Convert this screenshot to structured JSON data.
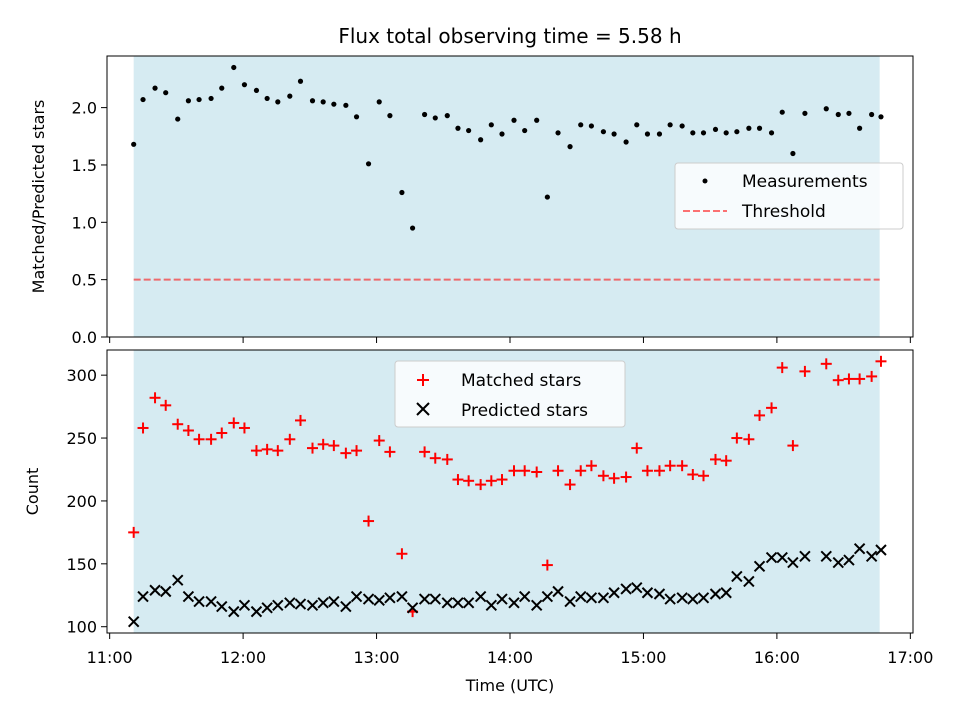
{
  "title": "Flux total observing time = 5.58 h",
  "colors": {
    "shade": "#add8e6",
    "threshold": "#ff0000",
    "matched": "#ff0000",
    "predicted": "#000000",
    "measurements": "#000000"
  },
  "chart_data": [
    {
      "type": "scatter",
      "panel": "top",
      "ylabel": "Matched/Predicted stars",
      "ylim": [
        0,
        2.45
      ],
      "yticks": [
        "0.0",
        "0.5",
        "1.0",
        "1.5",
        "2.0"
      ],
      "ytick_values": [
        0,
        0.5,
        1.0,
        1.5,
        2.0
      ],
      "shaded_interval": [
        11.18,
        16.77
      ],
      "legend_position": "center-right",
      "threshold": {
        "name": "Threshold",
        "y": 0.5,
        "style": "dashed"
      },
      "series": [
        {
          "name": "Measurements",
          "marker": "dot",
          "x": [
            11.18,
            11.25,
            11.34,
            11.42,
            11.51,
            11.59,
            11.67,
            11.76,
            11.84,
            11.93,
            12.01,
            12.1,
            12.18,
            12.26,
            12.35,
            12.43,
            12.52,
            12.6,
            12.68,
            12.77,
            12.85,
            12.94,
            13.02,
            13.1,
            13.19,
            13.27,
            13.36,
            13.44,
            13.53,
            13.61,
            13.69,
            13.78,
            13.86,
            13.94,
            14.03,
            14.11,
            14.2,
            14.28,
            14.36,
            14.45,
            14.53,
            14.61,
            14.7,
            14.78,
            14.87,
            14.95,
            15.03,
            15.12,
            15.2,
            15.29,
            15.37,
            15.45,
            15.54,
            15.62,
            15.7,
            15.79,
            15.87,
            15.96,
            16.04,
            16.12,
            16.21,
            16.37,
            16.46,
            16.54,
            16.62,
            16.71,
            16.78
          ],
          "y": [
            1.68,
            2.07,
            2.17,
            2.13,
            1.9,
            2.06,
            2.07,
            2.08,
            2.17,
            2.35,
            2.2,
            2.15,
            2.08,
            2.05,
            2.1,
            2.23,
            2.06,
            2.05,
            2.03,
            2.02,
            1.92,
            1.51,
            2.05,
            1.93,
            1.26,
            0.95,
            1.94,
            1.91,
            1.93,
            1.82,
            1.8,
            1.72,
            1.85,
            1.77,
            1.89,
            1.8,
            1.89,
            1.22,
            1.78,
            1.66,
            1.85,
            1.84,
            1.79,
            1.77,
            1.7,
            1.85,
            1.77,
            1.77,
            1.85,
            1.84,
            1.78,
            1.78,
            1.81,
            1.78,
            1.79,
            1.82,
            1.82,
            1.78,
            1.96,
            1.6,
            1.95,
            1.99,
            1.94,
            1.95,
            1.82,
            1.94,
            1.92
          ]
        }
      ]
    },
    {
      "type": "scatter",
      "panel": "bottom",
      "xlabel": "Time (UTC)",
      "ylabel": "Count",
      "xlim": [
        10.98,
        17.02
      ],
      "ylim": [
        95,
        320
      ],
      "xticks": [
        "11:00",
        "12:00",
        "13:00",
        "14:00",
        "15:00",
        "16:00",
        "17:00"
      ],
      "xtick_values": [
        11,
        12,
        13,
        14,
        15,
        16,
        17
      ],
      "yticks": [
        "100",
        "150",
        "200",
        "250",
        "300"
      ],
      "ytick_values": [
        100,
        150,
        200,
        250,
        300
      ],
      "shaded_interval": [
        11.18,
        16.77
      ],
      "legend_position": "upper-center",
      "series": [
        {
          "name": "Matched stars",
          "marker": "plus",
          "x": [
            11.18,
            11.25,
            11.34,
            11.42,
            11.51,
            11.59,
            11.67,
            11.76,
            11.84,
            11.93,
            12.01,
            12.1,
            12.18,
            12.26,
            12.35,
            12.43,
            12.52,
            12.6,
            12.68,
            12.77,
            12.85,
            12.94,
            13.02,
            13.1,
            13.19,
            13.27,
            13.36,
            13.44,
            13.53,
            13.61,
            13.69,
            13.78,
            13.86,
            13.94,
            14.03,
            14.11,
            14.2,
            14.28,
            14.36,
            14.45,
            14.53,
            14.61,
            14.7,
            14.78,
            14.87,
            14.95,
            15.03,
            15.12,
            15.2,
            15.29,
            15.37,
            15.45,
            15.54,
            15.62,
            15.7,
            15.79,
            15.87,
            15.96,
            16.04,
            16.12,
            16.21,
            16.37,
            16.46,
            16.54,
            16.62,
            16.71,
            16.78
          ],
          "y": [
            175,
            258,
            282,
            276,
            261,
            256,
            249,
            249,
            254,
            262,
            258,
            240,
            241,
            240,
            249,
            264,
            242,
            245,
            244,
            238,
            240,
            184,
            248,
            239,
            158,
            112,
            239,
            234,
            233,
            217,
            216,
            213,
            216,
            217,
            224,
            224,
            223,
            149,
            224,
            213,
            224,
            228,
            220,
            218,
            219,
            242,
            224,
            224,
            228,
            228,
            221,
            220,
            233,
            232,
            250,
            249,
            268,
            274,
            306,
            244,
            303,
            309,
            296,
            297,
            297,
            299,
            311
          ]
        },
        {
          "name": "Predicted stars",
          "marker": "x",
          "x": [
            11.18,
            11.25,
            11.34,
            11.42,
            11.51,
            11.59,
            11.67,
            11.76,
            11.84,
            11.93,
            12.01,
            12.1,
            12.18,
            12.26,
            12.35,
            12.43,
            12.52,
            12.6,
            12.68,
            12.77,
            12.85,
            12.94,
            13.02,
            13.1,
            13.19,
            13.27,
            13.36,
            13.44,
            13.53,
            13.61,
            13.69,
            13.78,
            13.86,
            13.94,
            14.03,
            14.11,
            14.2,
            14.28,
            14.36,
            14.45,
            14.53,
            14.61,
            14.7,
            14.78,
            14.87,
            14.95,
            15.03,
            15.12,
            15.2,
            15.29,
            15.37,
            15.45,
            15.54,
            15.62,
            15.7,
            15.79,
            15.87,
            15.96,
            16.04,
            16.12,
            16.21,
            16.37,
            16.46,
            16.54,
            16.62,
            16.71,
            16.78
          ],
          "y": [
            104,
            124,
            129,
            128,
            137,
            124,
            120,
            120,
            116,
            112,
            117,
            112,
            115,
            117,
            119,
            118,
            117,
            119,
            120,
            116,
            124,
            122,
            121,
            123,
            124,
            115,
            122,
            122,
            119,
            119,
            119,
            124,
            117,
            122,
            119,
            124,
            117,
            124,
            128,
            120,
            124,
            123,
            123,
            127,
            130,
            131,
            127,
            126,
            122,
            123,
            122,
            123,
            126,
            127,
            140,
            136,
            148,
            155,
            155,
            151,
            156,
            156,
            151,
            153,
            162,
            156,
            161
          ]
        }
      ]
    }
  ]
}
